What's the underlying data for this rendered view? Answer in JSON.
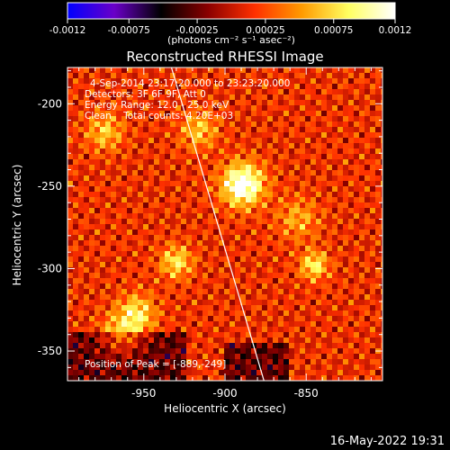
{
  "colorbar": {
    "tick_labels": [
      "-0.0012",
      "-0.00075",
      "-0.00025",
      "0.00025",
      "0.00075",
      "0.0012"
    ],
    "units": "(photons cm⁻² s⁻¹ asec⁻²)",
    "range": [
      -0.0012,
      0.0012
    ],
    "colormap": [
      "#0000ff",
      "#6a00c8",
      "#000000",
      "#8a0000",
      "#ff3000",
      "#ff9a00",
      "#ffff60",
      "#ffffff"
    ]
  },
  "chart_data": {
    "type": "heatmap",
    "title": "Reconstructed RHESSI Image",
    "xlabel": "Heliocentric X (arcsec)",
    "ylabel": "Heliocentric Y (arcsec)",
    "xlim": [
      -997,
      -803
    ],
    "ylim": [
      -368,
      -178
    ],
    "x_ticks": [
      -950,
      -900,
      -850
    ],
    "y_ticks": [
      -200,
      -250,
      -300,
      -350
    ],
    "x_tick_labels": [
      "-950",
      "-900",
      "-850"
    ],
    "y_tick_labels": [
      "-200",
      "-250",
      "-300",
      "-350"
    ],
    "annotations": [
      "4-Sep-2014 23:17:20.000 to 23:23:20.000",
      "Detectors: 3F 6F 9F, Att 0",
      "Energy Range: 12.0 - 25.0 keV",
      "Clean    Total counts: 4.20E+03"
    ],
    "peak_label": "Position of Peak = [-889,-249]",
    "peak": {
      "x": -889,
      "y": -249
    },
    "limb_line": [
      {
        "x": -933,
        "y": -178
      },
      {
        "x": -876,
        "y": -368
      }
    ],
    "sources": [
      {
        "x": -889,
        "y": -249,
        "amp": 1.0,
        "sigma": 9
      },
      {
        "x": -930,
        "y": -296,
        "amp": 0.55,
        "sigma": 7
      },
      {
        "x": -954,
        "y": -327,
        "amp": 0.55,
        "sigma": 8
      },
      {
        "x": -845,
        "y": -298,
        "amp": 0.6,
        "sigma": 6
      },
      {
        "x": -974,
        "y": -217,
        "amp": 0.45,
        "sigma": 8
      },
      {
        "x": -916,
        "y": -216,
        "amp": 0.45,
        "sigma": 8
      },
      {
        "x": -964,
        "y": -340,
        "amp": 0.45,
        "sigma": 9
      },
      {
        "x": -855,
        "y": -270,
        "amp": 0.35,
        "sigma": 9
      }
    ],
    "colorscale_range": [
      -0.0012,
      0.0012
    ]
  },
  "footer": {
    "timestamp": "16-May-2022 19:31"
  }
}
